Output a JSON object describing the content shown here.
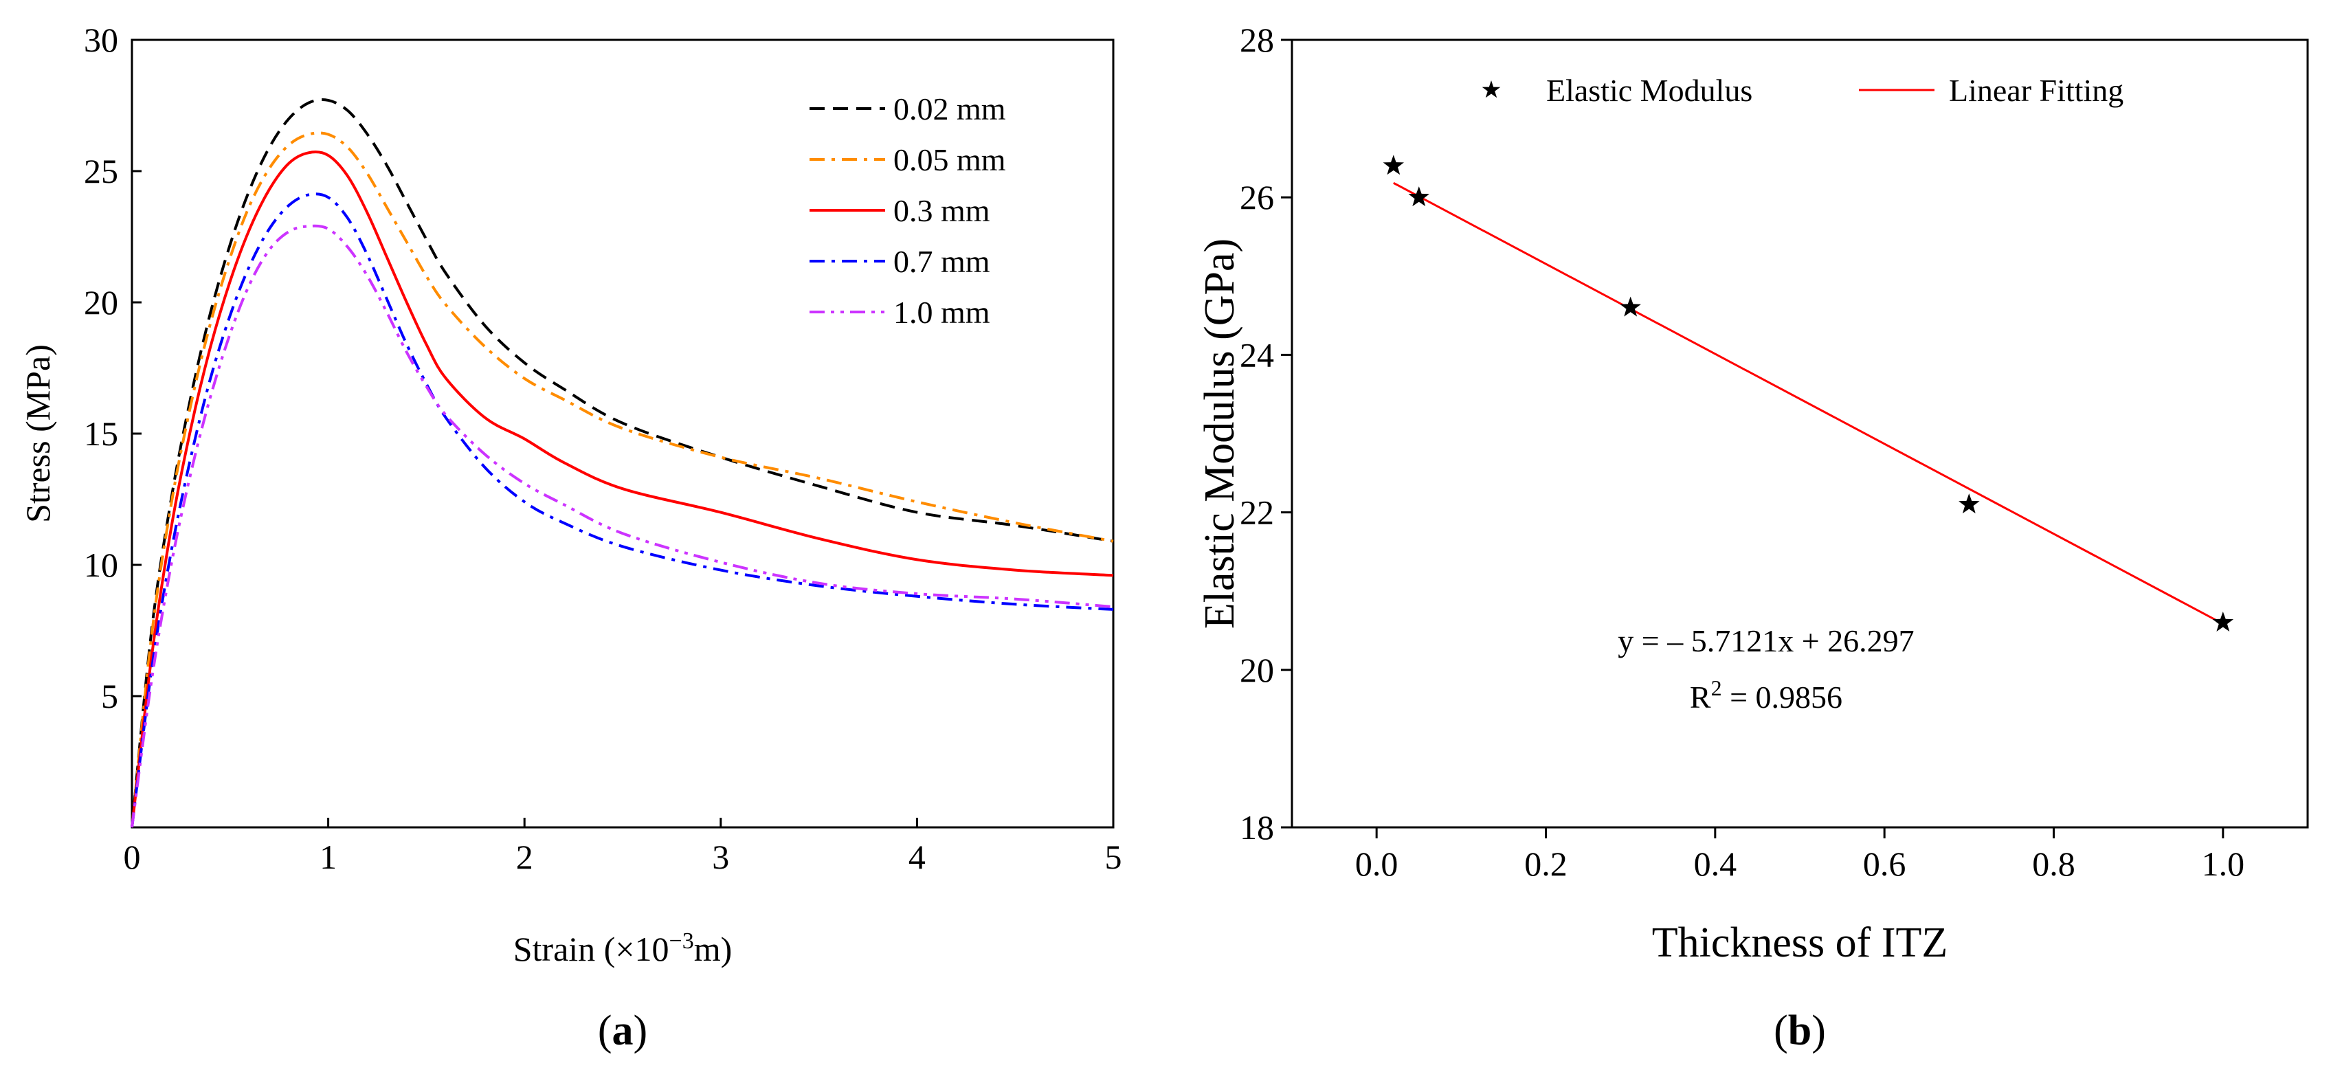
{
  "chart_data": [
    {
      "type": "line",
      "panel": "a",
      "panel_label_open": "(",
      "panel_label_letter": "a",
      "panel_label_close": ")",
      "xlabel_prefix": "Strain (×10",
      "xlabel_sup": "−3",
      "xlabel_suffix": "m)",
      "ylabel": "Stress (MPa)",
      "xlim": [
        0,
        5
      ],
      "ylim": [
        0,
        30
      ],
      "xticks": [
        0,
        1,
        2,
        3,
        4,
        5
      ],
      "yticks": [
        5,
        10,
        15,
        20,
        25,
        30
      ],
      "legend_position": "top-right",
      "series": [
        {
          "name": "0.02 mm",
          "color": "#000000",
          "dash": "dashed",
          "x": [
            0,
            0.1,
            0.2,
            0.3,
            0.4,
            0.5,
            0.6,
            0.7,
            0.8,
            0.9,
            1.0,
            1.1,
            1.2,
            1.3,
            1.4,
            1.5,
            1.6,
            1.8,
            2.0,
            2.2,
            2.5,
            3.0,
            3.5,
            4.0,
            4.5,
            5.0
          ],
          "y": [
            0,
            7.5,
            12.5,
            16.4,
            19.6,
            22.2,
            24.3,
            25.9,
            27.0,
            27.6,
            27.7,
            27.3,
            26.4,
            25.2,
            23.8,
            22.4,
            21.1,
            19.1,
            17.7,
            16.7,
            15.4,
            14.1,
            13.0,
            12.0,
            11.5,
            10.9
          ]
        },
        {
          "name": "0.05 mm",
          "color": "#ff8c00",
          "dash": "dashdot",
          "x": [
            0,
            0.1,
            0.2,
            0.3,
            0.4,
            0.5,
            0.6,
            0.7,
            0.8,
            0.9,
            1.0,
            1.1,
            1.2,
            1.3,
            1.4,
            1.5,
            1.6,
            1.8,
            2.0,
            2.2,
            2.5,
            3.0,
            3.5,
            4.0,
            4.5,
            5.0
          ],
          "y": [
            0,
            7.3,
            12.3,
            16.1,
            19.2,
            21.7,
            23.7,
            25.1,
            26.0,
            26.4,
            26.4,
            25.9,
            24.9,
            23.6,
            22.3,
            21.0,
            19.9,
            18.3,
            17.1,
            16.3,
            15.2,
            14.1,
            13.3,
            12.4,
            11.6,
            10.9
          ]
        },
        {
          "name": "0.3 mm",
          "color": "#ff0000",
          "dash": "solid",
          "x": [
            0,
            0.1,
            0.2,
            0.3,
            0.4,
            0.5,
            0.6,
            0.7,
            0.8,
            0.9,
            1.0,
            1.1,
            1.2,
            1.3,
            1.4,
            1.5,
            1.6,
            1.8,
            2.0,
            2.2,
            2.5,
            3.0,
            3.5,
            4.0,
            4.5,
            5.0
          ],
          "y": [
            0,
            6.5,
            11.4,
            15.2,
            18.3,
            20.8,
            22.8,
            24.3,
            25.3,
            25.7,
            25.6,
            24.8,
            23.4,
            21.7,
            20.0,
            18.4,
            17.1,
            15.6,
            14.8,
            13.9,
            12.9,
            12.0,
            11.0,
            10.2,
            9.8,
            9.6
          ]
        },
        {
          "name": "0.7 mm",
          "color": "#0000ff",
          "dash": "dashdot",
          "x": [
            0,
            0.1,
            0.2,
            0.3,
            0.4,
            0.5,
            0.6,
            0.7,
            0.8,
            0.9,
            1.0,
            1.1,
            1.2,
            1.3,
            1.4,
            1.5,
            1.6,
            1.8,
            2.0,
            2.2,
            2.5,
            3.0,
            3.5,
            4.0,
            4.5,
            5.0
          ],
          "y": [
            0,
            6.0,
            10.5,
            14.1,
            17.1,
            19.5,
            21.4,
            22.8,
            23.7,
            24.1,
            24.0,
            23.2,
            21.8,
            20.1,
            18.4,
            16.9,
            15.6,
            13.7,
            12.4,
            11.6,
            10.7,
            9.8,
            9.2,
            8.8,
            8.5,
            8.3
          ]
        },
        {
          "name": "1.0 mm",
          "color": "#cc33ff",
          "dash": "dashdotdot",
          "x": [
            0,
            0.1,
            0.2,
            0.3,
            0.4,
            0.5,
            0.6,
            0.7,
            0.8,
            0.9,
            1.0,
            1.1,
            1.2,
            1.3,
            1.4,
            1.5,
            1.6,
            1.8,
            2.0,
            2.2,
            2.5,
            3.0,
            3.5,
            4.0,
            4.5,
            5.0
          ],
          "y": [
            0,
            5.6,
            10.0,
            13.5,
            16.4,
            18.8,
            20.7,
            22.0,
            22.7,
            22.9,
            22.8,
            22.1,
            21.0,
            19.6,
            18.1,
            16.8,
            15.7,
            14.2,
            13.1,
            12.3,
            11.2,
            10.1,
            9.3,
            8.9,
            8.7,
            8.4
          ]
        }
      ]
    },
    {
      "type": "scatter",
      "panel": "b",
      "panel_label_open": "(",
      "panel_label_letter": "b",
      "panel_label_close": ")",
      "xlabel": "Thickness of ITZ",
      "ylabel": "Elastic Modulus (GPa)",
      "xlim": [
        -0.1,
        1.1
      ],
      "ylim": [
        18,
        28
      ],
      "xticks": [
        "0.0",
        "0.2",
        "0.4",
        "0.6",
        "0.8",
        "1.0"
      ],
      "yticks": [
        "18",
        "20",
        "22",
        "24",
        "26",
        "28"
      ],
      "legend_position": "top",
      "series": [
        {
          "name": "Elastic Modulus",
          "marker": "star",
          "color": "#000000",
          "x": [
            0.02,
            0.05,
            0.3,
            0.7,
            1.0
          ],
          "y": [
            26.4,
            26.0,
            24.6,
            22.1,
            20.6
          ]
        },
        {
          "name": "Linear Fitting",
          "type": "line",
          "color": "#ff0000",
          "slope": -5.7121,
          "intercept": 26.297,
          "x_range": [
            0.02,
            1.0
          ]
        }
      ],
      "annotation": {
        "equation": "y = – 5.7121x + 26.297",
        "r2_prefix": "R",
        "r2_sup": "2",
        "r2_suffix": " = 0.9856"
      }
    }
  ]
}
